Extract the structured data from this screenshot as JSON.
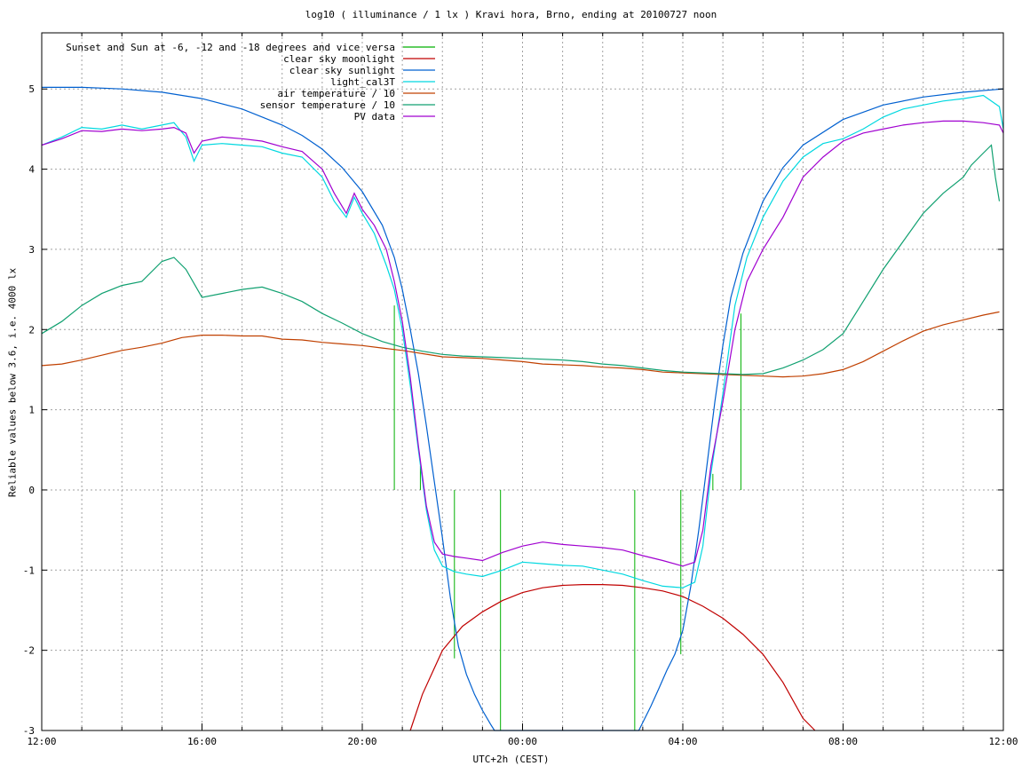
{
  "chart_data": {
    "type": "line",
    "title": "log10 ( illuminance / 1 lx ) Kravi hora, Brno, ending at 20100727 noon",
    "xlabel": "UTC+2h (CEST)",
    "ylabel": "Reliable values below 3.6, i.e. 4000 lx",
    "xlim": [
      12,
      36
    ],
    "ylim": [
      -3,
      5.7
    ],
    "grid": true,
    "legend_position": "top-left",
    "x_unit": "hours since 12:00 (local clock, 24 = 00:00)",
    "x_ticks": [
      {
        "x": 12,
        "label": "12:00"
      },
      {
        "x": 16,
        "label": "16:00"
      },
      {
        "x": 20,
        "label": "20:00"
      },
      {
        "x": 24,
        "label": "00:00"
      },
      {
        "x": 28,
        "label": "04:00"
      },
      {
        "x": 32,
        "label": "08:00"
      },
      {
        "x": 36,
        "label": "12:00"
      }
    ],
    "y_ticks": [
      -3,
      -2,
      -1,
      0,
      1,
      2,
      3,
      4,
      5
    ],
    "series": [
      {
        "name": "Sunset and Sun at -6, -12 and -18 degrees and vice versa",
        "kind": "impulse",
        "color": "#00b000",
        "x": [
          20.8,
          21.45,
          22.3,
          23.45,
          26.8,
          27.95,
          28.75,
          29.45
        ],
        "y": [
          2.3,
          0.3,
          -2.1,
          -3.0,
          -3.0,
          -2.05,
          0.2,
          2.2
        ]
      },
      {
        "name": "clear sky moonlight",
        "kind": "line",
        "color": "#c00000",
        "x": [
          21.2,
          21.5,
          22.0,
          22.5,
          23.0,
          23.5,
          24.0,
          24.5,
          25.0,
          25.5,
          26.0,
          26.5,
          27.0,
          27.5,
          28.0,
          28.5,
          29.0,
          29.5,
          30.0,
          30.5,
          31.0,
          31.3
        ],
        "y": [
          -3.0,
          -2.55,
          -2.0,
          -1.7,
          -1.52,
          -1.38,
          -1.28,
          -1.22,
          -1.19,
          -1.18,
          -1.18,
          -1.19,
          -1.22,
          -1.26,
          -1.33,
          -1.45,
          -1.6,
          -1.8,
          -2.05,
          -2.4,
          -2.85,
          -3.0
        ]
      },
      {
        "name": "clear sky sunlight",
        "kind": "line",
        "color": "#0060d0",
        "x": [
          12,
          13,
          14,
          15,
          16,
          17,
          18,
          18.5,
          19,
          19.5,
          20,
          20.5,
          20.8,
          21.0,
          21.2,
          21.4,
          21.6,
          21.8,
          22.0,
          22.2,
          22.4,
          22.6,
          22.8,
          23.0,
          23.2,
          23.3,
          26.9,
          27.0,
          27.2,
          27.4,
          27.6,
          27.8,
          28.0,
          28.2,
          28.4,
          28.6,
          28.8,
          29.0,
          29.2,
          29.5,
          30,
          30.5,
          31,
          32,
          33,
          34,
          35,
          36
        ],
        "y": [
          5.02,
          5.02,
          5.0,
          4.96,
          4.88,
          4.75,
          4.55,
          4.42,
          4.25,
          4.02,
          3.72,
          3.3,
          2.9,
          2.5,
          2.0,
          1.45,
          0.8,
          0.1,
          -0.6,
          -1.35,
          -1.95,
          -2.3,
          -2.55,
          -2.75,
          -2.92,
          -3.0,
          -3.0,
          -2.9,
          -2.7,
          -2.48,
          -2.25,
          -2.05,
          -1.75,
          -1.2,
          -0.5,
          0.3,
          1.1,
          1.8,
          2.4,
          2.95,
          3.6,
          4.02,
          4.3,
          4.62,
          4.8,
          4.9,
          4.96,
          5.0
        ]
      },
      {
        "name": "light_cal3T",
        "kind": "line",
        "color": "#00d8e0",
        "x": [
          12,
          12.5,
          13,
          13.5,
          14,
          14.5,
          15,
          15.3,
          15.6,
          15.8,
          16,
          16.5,
          17,
          17.5,
          18,
          18.5,
          19,
          19.3,
          19.6,
          19.8,
          20,
          20.3,
          20.6,
          20.8,
          21.0,
          21.2,
          21.4,
          21.6,
          21.8,
          22.0,
          22.3,
          22.6,
          23.0,
          23.5,
          24.0,
          24.5,
          25.0,
          25.5,
          26.0,
          26.5,
          27.0,
          27.5,
          28.0,
          28.3,
          28.5,
          28.7,
          29.0,
          29.3,
          29.6,
          30.0,
          30.5,
          31.0,
          31.5,
          32.0,
          32.5,
          33.0,
          33.5,
          34.0,
          34.5,
          35.0,
          35.5,
          35.9,
          36
        ],
        "y": [
          4.3,
          4.4,
          4.52,
          4.5,
          4.55,
          4.5,
          4.55,
          4.58,
          4.4,
          4.1,
          4.3,
          4.32,
          4.3,
          4.28,
          4.2,
          4.15,
          3.9,
          3.6,
          3.4,
          3.65,
          3.45,
          3.2,
          2.8,
          2.5,
          2.0,
          1.3,
          0.5,
          -0.25,
          -0.75,
          -0.95,
          -1.02,
          -1.05,
          -1.08,
          -1.0,
          -0.9,
          -0.92,
          -0.94,
          -0.95,
          -1.0,
          -1.05,
          -1.13,
          -1.2,
          -1.22,
          -1.15,
          -0.7,
          0.2,
          1.2,
          2.3,
          2.9,
          3.4,
          3.85,
          4.15,
          4.32,
          4.38,
          4.5,
          4.65,
          4.75,
          4.8,
          4.85,
          4.88,
          4.92,
          4.78,
          4.5
        ]
      },
      {
        "name": "air temperature / 10",
        "kind": "line",
        "color": "#c04000",
        "x": [
          12,
          12.5,
          13,
          13.5,
          14,
          14.5,
          15,
          15.5,
          16,
          16.5,
          17,
          17.5,
          18,
          18.5,
          19,
          19.5,
          20,
          20.5,
          21,
          21.5,
          22,
          22.5,
          23,
          23.5,
          24,
          24.5,
          25,
          25.5,
          26,
          26.5,
          27,
          27.5,
          28,
          28.5,
          29,
          29.5,
          30,
          30.5,
          31,
          31.5,
          32,
          32.5,
          33,
          33.5,
          34,
          34.5,
          35,
          35.5,
          35.9
        ],
        "y": [
          1.55,
          1.57,
          1.62,
          1.68,
          1.74,
          1.78,
          1.83,
          1.9,
          1.93,
          1.93,
          1.92,
          1.92,
          1.88,
          1.87,
          1.84,
          1.82,
          1.8,
          1.77,
          1.74,
          1.7,
          1.66,
          1.65,
          1.64,
          1.62,
          1.6,
          1.57,
          1.56,
          1.55,
          1.53,
          1.52,
          1.5,
          1.47,
          1.46,
          1.45,
          1.44,
          1.43,
          1.42,
          1.41,
          1.42,
          1.45,
          1.5,
          1.6,
          1.73,
          1.86,
          1.98,
          2.06,
          2.12,
          2.18,
          2.22
        ]
      },
      {
        "name": "sensor temperature / 10",
        "kind": "line",
        "color": "#10a070",
        "x": [
          12,
          12.5,
          13,
          13.5,
          14,
          14.5,
          15,
          15.3,
          15.6,
          16,
          16.5,
          17,
          17.5,
          18,
          18.5,
          19,
          19.5,
          20,
          20.5,
          21,
          21.5,
          22,
          22.5,
          23,
          23.5,
          24,
          24.5,
          25,
          25.5,
          26,
          26.5,
          27,
          27.5,
          28,
          28.5,
          29,
          29.5,
          30,
          30.5,
          31,
          31.5,
          32,
          32.5,
          33,
          33.5,
          34,
          34.5,
          35,
          35.2,
          35.5,
          35.7,
          35.8,
          35.9
        ],
        "y": [
          1.95,
          2.1,
          2.3,
          2.45,
          2.55,
          2.6,
          2.85,
          2.9,
          2.75,
          2.4,
          2.45,
          2.5,
          2.53,
          2.45,
          2.35,
          2.2,
          2.08,
          1.95,
          1.85,
          1.78,
          1.73,
          1.69,
          1.67,
          1.66,
          1.65,
          1.64,
          1.63,
          1.62,
          1.6,
          1.57,
          1.55,
          1.52,
          1.49,
          1.47,
          1.46,
          1.45,
          1.44,
          1.45,
          1.52,
          1.62,
          1.75,
          1.95,
          2.35,
          2.75,
          3.1,
          3.45,
          3.7,
          3.9,
          4.05,
          4.2,
          4.3,
          3.9,
          3.6
        ]
      },
      {
        "name": "PV data",
        "kind": "line",
        "color": "#a000d0",
        "x": [
          12,
          12.5,
          13,
          13.5,
          14,
          14.5,
          15,
          15.3,
          15.6,
          15.8,
          16,
          16.5,
          17,
          17.5,
          18,
          18.5,
          19,
          19.3,
          19.6,
          19.8,
          20,
          20.3,
          20.6,
          20.8,
          21.0,
          21.2,
          21.4,
          21.6,
          21.8,
          22.0,
          22.3,
          22.6,
          23.0,
          23.5,
          24.0,
          24.5,
          25.0,
          25.5,
          26.0,
          26.5,
          27.0,
          27.5,
          28.0,
          28.3,
          28.5,
          28.7,
          29.0,
          29.3,
          29.6,
          30.0,
          30.5,
          31.0,
          31.5,
          32.0,
          32.5,
          33.0,
          33.5,
          34.0,
          34.5,
          35.0,
          35.5,
          35.9,
          36
        ],
        "y": [
          4.3,
          4.38,
          4.48,
          4.47,
          4.5,
          4.48,
          4.5,
          4.52,
          4.45,
          4.2,
          4.35,
          4.4,
          4.38,
          4.35,
          4.28,
          4.22,
          4.0,
          3.7,
          3.45,
          3.7,
          3.5,
          3.3,
          3.0,
          2.6,
          2.1,
          1.4,
          0.55,
          -0.2,
          -0.65,
          -0.8,
          -0.83,
          -0.85,
          -0.88,
          -0.78,
          -0.7,
          -0.65,
          -0.68,
          -0.7,
          -0.72,
          -0.75,
          -0.82,
          -0.88,
          -0.95,
          -0.9,
          -0.5,
          0.3,
          1.1,
          2.0,
          2.6,
          3.0,
          3.4,
          3.9,
          4.15,
          4.35,
          4.45,
          4.5,
          4.55,
          4.58,
          4.6,
          4.6,
          4.58,
          4.55,
          4.45
        ]
      }
    ]
  }
}
